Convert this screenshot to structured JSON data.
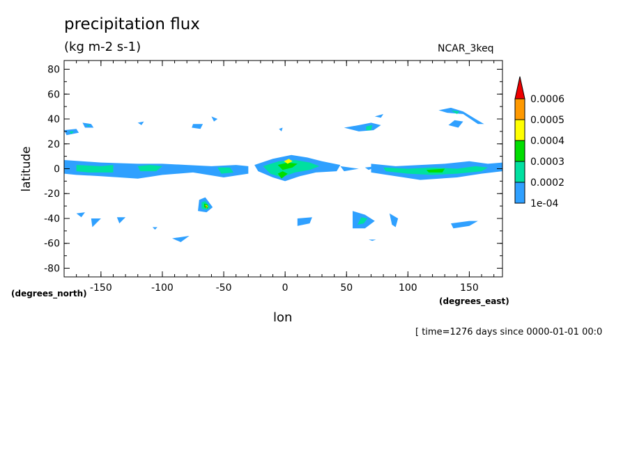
{
  "chart_data": {
    "type": "heatmap",
    "title": "precipitation flux",
    "units": "(kg m-2 s-1)",
    "model": "NCAR_3keq",
    "xlabel": "lon",
    "ylabel": "latitude",
    "x_units": "(degrees_east)",
    "y_units": "(degrees_north)",
    "time_label": "[ time=1276 days since 0000-01-01 00:0",
    "xlim": [
      -180,
      177
    ],
    "ylim": [
      -87,
      87
    ],
    "x_ticks": [
      -150,
      -100,
      -50,
      0,
      50,
      100,
      150
    ],
    "x_tick_labels": [
      "-150",
      "-100",
      "-50",
      "0",
      "50",
      "100",
      "150"
    ],
    "y_ticks": [
      80,
      60,
      40,
      20,
      0,
      -20,
      -40,
      -60,
      -80
    ],
    "y_tick_labels": [
      "80",
      "60",
      "40",
      "20",
      "0",
      "-20",
      "-40",
      "-60",
      "-80"
    ],
    "grid": false,
    "legend_position": "right",
    "colorbar": {
      "levels": [
        0.0001,
        0.0002,
        0.0003,
        0.0004,
        0.0005,
        0.0006
      ],
      "labels": [
        "1e-04",
        "0.0002",
        "0.0003",
        "0.0004",
        "0.0005",
        "0.0006"
      ],
      "colors": [
        "#2fa0ff",
        "#00e0a0",
        "#00dd00",
        "#ffff00",
        "#ff9900",
        "#ee0000"
      ]
    },
    "contour_regions": [
      {
        "level": 0,
        "polygon": [
          [
            -180,
            7
          ],
          [
            -150,
            5
          ],
          [
            -120,
            4
          ],
          [
            -100,
            4
          ],
          [
            -80,
            3
          ],
          [
            -60,
            2
          ],
          [
            -40,
            3
          ],
          [
            -30,
            2
          ],
          [
            -30,
            -4
          ],
          [
            -50,
            -7
          ],
          [
            -75,
            -3
          ],
          [
            -100,
            -5
          ],
          [
            -120,
            -8
          ],
          [
            -150,
            -6
          ],
          [
            -170,
            -5
          ],
          [
            -180,
            -4
          ]
        ]
      },
      {
        "level": 1,
        "polygon": [
          [
            -170,
            3
          ],
          [
            -150,
            2
          ],
          [
            -140,
            3
          ],
          [
            -140,
            -3
          ],
          [
            -160,
            -3
          ],
          [
            -170,
            -2
          ]
        ]
      },
      {
        "level": 1,
        "polygon": [
          [
            -120,
            2
          ],
          [
            -110,
            3
          ],
          [
            -100,
            2
          ],
          [
            -105,
            -2
          ],
          [
            -118,
            -2
          ]
        ]
      },
      {
        "level": 1,
        "polygon": [
          [
            -55,
            1
          ],
          [
            -45,
            1
          ],
          [
            -42,
            -3
          ],
          [
            -52,
            -4
          ]
        ]
      },
      {
        "level": 0,
        "polygon": [
          [
            -25,
            3
          ],
          [
            -10,
            8
          ],
          [
            5,
            11
          ],
          [
            18,
            9
          ],
          [
            30,
            6
          ],
          [
            45,
            3
          ],
          [
            42,
            -2
          ],
          [
            25,
            -3
          ],
          [
            12,
            -6
          ],
          [
            0,
            -10
          ],
          [
            -10,
            -7
          ],
          [
            -22,
            -2
          ]
        ]
      },
      {
        "level": 1,
        "polygon": [
          [
            -18,
            2
          ],
          [
            -5,
            6
          ],
          [
            8,
            7
          ],
          [
            20,
            5
          ],
          [
            28,
            2
          ],
          [
            20,
            -1
          ],
          [
            8,
            -3
          ],
          [
            -3,
            -7
          ],
          [
            -12,
            -4
          ]
        ]
      },
      {
        "level": 2,
        "polygon": [
          [
            -6,
            3
          ],
          [
            2,
            5
          ],
          [
            10,
            4
          ],
          [
            6,
            1
          ],
          [
            -2,
            -1
          ]
        ]
      },
      {
        "level": 3,
        "polygon": [
          [
            -1,
            6
          ],
          [
            3,
            8
          ],
          [
            6,
            6
          ],
          [
            2,
            4
          ]
        ]
      },
      {
        "level": 2,
        "polygon": [
          [
            -6,
            -4
          ],
          [
            -2,
            -2
          ],
          [
            2,
            -4
          ],
          [
            -3,
            -8
          ]
        ]
      },
      {
        "level": 0,
        "polygon": [
          [
            45,
            2
          ],
          [
            60,
            0
          ],
          [
            48,
            -2
          ]
        ]
      },
      {
        "level": 0,
        "polygon": [
          [
            65,
            1
          ],
          [
            75,
            2
          ],
          [
            68,
            -1
          ]
        ]
      },
      {
        "level": 0,
        "polygon": [
          [
            70,
            4
          ],
          [
            90,
            2
          ],
          [
            110,
            3
          ],
          [
            130,
            4
          ],
          [
            150,
            6
          ],
          [
            165,
            4
          ],
          [
            177,
            5
          ],
          [
            177,
            -2
          ],
          [
            160,
            -4
          ],
          [
            140,
            -7
          ],
          [
            110,
            -9
          ],
          [
            90,
            -6
          ],
          [
            70,
            -3
          ]
        ]
      },
      {
        "level": 1,
        "polygon": [
          [
            80,
            1
          ],
          [
            100,
            0
          ],
          [
            120,
            1
          ],
          [
            140,
            0
          ],
          [
            155,
            2
          ],
          [
            165,
            1
          ],
          [
            160,
            -2
          ],
          [
            140,
            -4
          ],
          [
            120,
            -5
          ],
          [
            100,
            -4
          ],
          [
            82,
            -2
          ]
        ]
      },
      {
        "level": 2,
        "polygon": [
          [
            115,
            -1
          ],
          [
            130,
            0
          ],
          [
            128,
            -3
          ],
          [
            117,
            -3
          ]
        ]
      },
      {
        "level": 0,
        "polygon": [
          [
            -180,
            31
          ],
          [
            -170,
            32
          ],
          [
            -168,
            29
          ],
          [
            -178,
            27
          ]
        ]
      },
      {
        "level": 1,
        "polygon": [
          [
            -176,
            30
          ],
          [
            -172,
            30
          ],
          [
            -174,
            28
          ]
        ]
      },
      {
        "level": 0,
        "polygon": [
          [
            -165,
            37
          ],
          [
            -158,
            36
          ],
          [
            -156,
            33
          ],
          [
            -163,
            33
          ]
        ]
      },
      {
        "level": 1,
        "polygon": [
          [
            -162,
            35
          ],
          [
            -159,
            35
          ],
          [
            -160,
            34
          ]
        ]
      },
      {
        "level": 0,
        "polygon": [
          [
            -120,
            37
          ],
          [
            -115,
            38
          ],
          [
            -117,
            35
          ]
        ]
      },
      {
        "level": 0,
        "polygon": [
          [
            -75,
            36
          ],
          [
            -67,
            36
          ],
          [
            -69,
            32
          ],
          [
            -76,
            33
          ]
        ]
      },
      {
        "level": 0,
        "polygon": [
          [
            -60,
            42
          ],
          [
            -55,
            40
          ],
          [
            -58,
            38
          ]
        ]
      },
      {
        "level": 0,
        "polygon": [
          [
            -5,
            32
          ],
          [
            -2,
            33
          ],
          [
            -3,
            30
          ]
        ]
      },
      {
        "level": 0,
        "polygon": [
          [
            48,
            33
          ],
          [
            60,
            35
          ],
          [
            70,
            37
          ],
          [
            78,
            35
          ],
          [
            72,
            31
          ],
          [
            60,
            30
          ]
        ]
      },
      {
        "level": 1,
        "polygon": [
          [
            66,
            34
          ],
          [
            71,
            35
          ],
          [
            70,
            31
          ],
          [
            66,
            31
          ]
        ]
      },
      {
        "level": 0,
        "polygon": [
          [
            73,
            42
          ],
          [
            80,
            44
          ],
          [
            78,
            41
          ]
        ]
      },
      {
        "level": 0,
        "polygon": [
          [
            125,
            47
          ],
          [
            135,
            49
          ],
          [
            145,
            46
          ],
          [
            155,
            40
          ],
          [
            162,
            36
          ],
          [
            157,
            36
          ],
          [
            145,
            44
          ],
          [
            132,
            45
          ]
        ]
      },
      {
        "level": 1,
        "polygon": [
          [
            135,
            47
          ],
          [
            142,
            46
          ],
          [
            140,
            44
          ]
        ]
      },
      {
        "level": 0,
        "polygon": [
          [
            133,
            35
          ],
          [
            138,
            39
          ],
          [
            145,
            38
          ],
          [
            141,
            33
          ]
        ]
      },
      {
        "level": 0,
        "polygon": [
          [
            -70,
            -25
          ],
          [
            -65,
            -23
          ],
          [
            -59,
            -31
          ],
          [
            -64,
            -35
          ],
          [
            -71,
            -34
          ]
        ]
      },
      {
        "level": 1,
        "polygon": [
          [
            -68,
            -27
          ],
          [
            -65,
            -26
          ],
          [
            -61,
            -31
          ],
          [
            -64,
            -33
          ],
          [
            -68,
            -32
          ]
        ]
      },
      {
        "level": 2,
        "polygon": [
          [
            -66,
            -28
          ],
          [
            -63,
            -29
          ],
          [
            -63,
            -32
          ],
          [
            -66,
            -31
          ]
        ]
      },
      {
        "level": 3,
        "polygon": [
          [
            -65,
            -29
          ],
          [
            -63,
            -30
          ],
          [
            -64,
            -32
          ]
        ]
      },
      {
        "level": 5,
        "polygon": [
          [
            -64.5,
            -30
          ],
          [
            -63.5,
            -30.5
          ],
          [
            -64.2,
            -31.5
          ]
        ]
      },
      {
        "level": 0,
        "polygon": [
          [
            -170,
            -36
          ],
          [
            -163,
            -35
          ],
          [
            -166,
            -39
          ]
        ]
      },
      {
        "level": 0,
        "polygon": [
          [
            -158,
            -40
          ],
          [
            -150,
            -40
          ],
          [
            -157,
            -47
          ]
        ]
      },
      {
        "level": 0,
        "polygon": [
          [
            -137,
            -39
          ],
          [
            -130,
            -39
          ],
          [
            -135,
            -44
          ]
        ]
      },
      {
        "level": 0,
        "polygon": [
          [
            -108,
            -47
          ],
          [
            -104,
            -47
          ],
          [
            -106,
            -49
          ]
        ]
      },
      {
        "level": 0,
        "polygon": [
          [
            -92,
            -56
          ],
          [
            -78,
            -54
          ],
          [
            -85,
            -59
          ]
        ]
      },
      {
        "level": 0,
        "polygon": [
          [
            10,
            -40
          ],
          [
            22,
            -39
          ],
          [
            20,
            -44
          ],
          [
            10,
            -46
          ]
        ]
      },
      {
        "level": 0,
        "polygon": [
          [
            55,
            -34
          ],
          [
            65,
            -37
          ],
          [
            73,
            -42
          ],
          [
            65,
            -48
          ],
          [
            55,
            -48
          ]
        ]
      },
      {
        "level": 1,
        "polygon": [
          [
            62,
            -39
          ],
          [
            67,
            -40
          ],
          [
            64,
            -44
          ],
          [
            59,
            -45
          ]
        ]
      },
      {
        "level": 0,
        "polygon": [
          [
            85,
            -36
          ],
          [
            92,
            -40
          ],
          [
            90,
            -47
          ],
          [
            87,
            -45
          ]
        ]
      },
      {
        "level": 0,
        "polygon": [
          [
            135,
            -44
          ],
          [
            150,
            -42
          ],
          [
            157,
            -42
          ],
          [
            150,
            -46
          ],
          [
            137,
            -48
          ]
        ]
      },
      {
        "level": 0,
        "polygon": [
          [
            68,
            -57
          ],
          [
            74,
            -57
          ],
          [
            71,
            -58
          ]
        ]
      }
    ]
  }
}
